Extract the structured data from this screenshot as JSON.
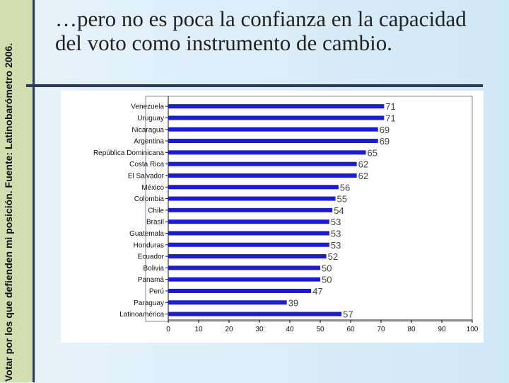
{
  "slide": {
    "title": "…pero no es poca la confianza en la capacidad del voto como instrumento de cambio.",
    "side_caption": "Votar por los que defienden mi posición. Fuente: Latinobarómetro 2006."
  },
  "colors": {
    "bar": "#1a1adb",
    "left_band": "#d2ddb0",
    "rule_lines": "#2c3b5a",
    "background": "#cfe8f7"
  },
  "chart_data": {
    "type": "bar",
    "orientation": "horizontal",
    "categories": [
      "Venezuela",
      "Uruguay",
      "Nicaragua",
      "Argentina",
      "República Dominicana",
      "Costa Rica",
      "El Salvador",
      "México",
      "Colombia",
      "Chile",
      "Brasil",
      "Guatemala",
      "Honduras",
      "Ecuador",
      "Bolivia",
      "Panamá",
      "Perú",
      "Paraguay",
      "Latinoamérica"
    ],
    "values": [
      71,
      71,
      69,
      69,
      65,
      62,
      62,
      56,
      55,
      54,
      53,
      53,
      53,
      52,
      50,
      50,
      47,
      39,
      57
    ],
    "xlim": [
      0,
      100
    ],
    "xticks": [
      "0",
      "10",
      "20",
      "30",
      "40",
      "50",
      "60",
      "70",
      "80",
      "90",
      "100"
    ],
    "grid": false,
    "legend": "none"
  }
}
